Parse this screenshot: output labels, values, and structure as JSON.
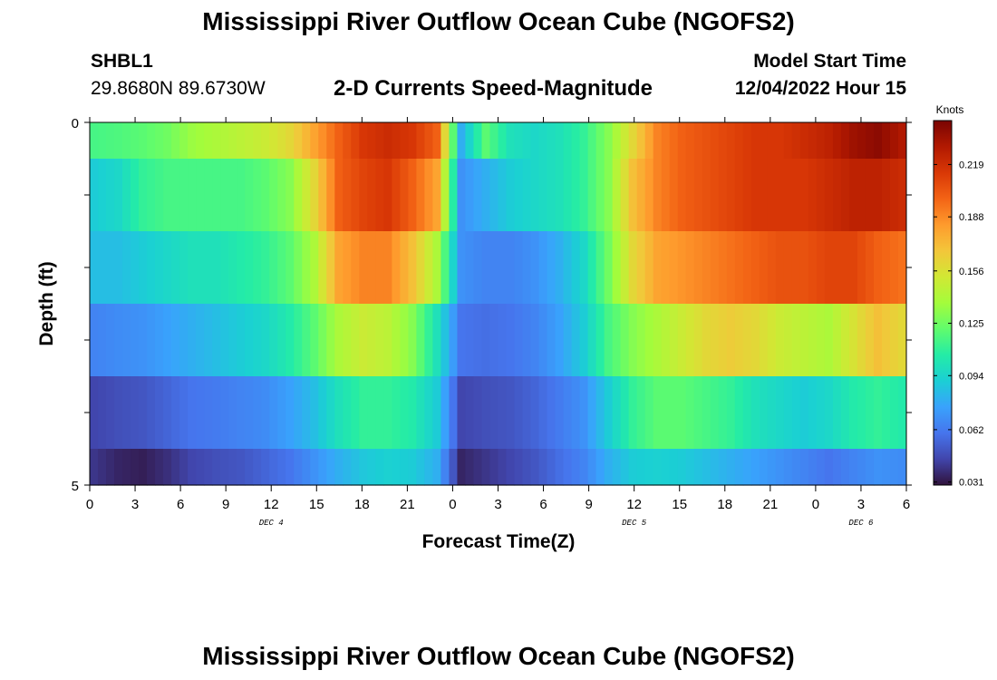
{
  "header": {
    "title": "Mississippi River Outflow Ocean Cube (NGOFS2)",
    "station_id": "SHBL1",
    "coordinates": "29.8680N  89.6730W",
    "start_label": "Model Start Time",
    "start_value": "12/04/2022 Hour 15"
  },
  "footer": {
    "title": "Mississippi River Outflow Ocean Cube (NGOFS2)"
  },
  "chart_data": {
    "type": "heatmap",
    "title": "2-D Currents Speed-Magnitude",
    "xlabel": "Forecast Time(Z)",
    "ylabel": "Depth (ft)",
    "x_tick_labels": [
      "0",
      "3",
      "6",
      "9",
      "12",
      "15",
      "18",
      "21",
      "0",
      "3",
      "6",
      "9",
      "12",
      "15",
      "18",
      "21",
      "0",
      "3",
      "6"
    ],
    "date_labels": [
      {
        "label": "DEC 4",
        "tick_index": 4
      },
      {
        "label": "DEC 5",
        "tick_index": 12
      },
      {
        "label": "DEC 6",
        "tick_index": 17
      }
    ],
    "y_tick_labels": [
      "0",
      "5"
    ],
    "ylim": [
      0,
      5
    ],
    "colorbar": {
      "unit": "Knots",
      "min": 0.0292,
      "max": 0.245,
      "ticks": [
        "0.219",
        "0.188",
        "0.156",
        "0.125",
        "0.094",
        "0.062",
        "0.031"
      ],
      "colors": [
        "#30123b",
        "#4145ab",
        "#4675ed",
        "#39a2fc",
        "#1bcfd4",
        "#24eca6",
        "#61fc6c",
        "#a4fc3b",
        "#d1e834",
        "#f3c63a",
        "#fe9b2d",
        "#f36315",
        "#d93806",
        "#b11901",
        "#7a0402"
      ]
    },
    "layers": [
      [
        0.115,
        0.117,
        0.12,
        0.125,
        0.135,
        0.14,
        0.145,
        0.15,
        0.16,
        0.18,
        0.2,
        0.215,
        0.22,
        0.215,
        0.2,
        0.08,
        0.12,
        0.1,
        0.095,
        0.1,
        0.11,
        0.13,
        0.16,
        0.19,
        0.2,
        0.205,
        0.21,
        0.215,
        0.215,
        0.22,
        0.225,
        0.235,
        0.24,
        0.23
      ],
      [
        0.09,
        0.095,
        0.11,
        0.115,
        0.115,
        0.115,
        0.115,
        0.12,
        0.13,
        0.16,
        0.2,
        0.21,
        0.215,
        0.2,
        0.18,
        0.07,
        0.08,
        0.09,
        0.095,
        0.1,
        0.11,
        0.13,
        0.17,
        0.19,
        0.2,
        0.205,
        0.21,
        0.215,
        0.215,
        0.215,
        0.22,
        0.225,
        0.225,
        0.22
      ],
      [
        0.085,
        0.085,
        0.09,
        0.095,
        0.1,
        0.1,
        0.105,
        0.11,
        0.12,
        0.14,
        0.18,
        0.19,
        0.19,
        0.17,
        0.14,
        0.07,
        0.065,
        0.065,
        0.07,
        0.08,
        0.095,
        0.125,
        0.16,
        0.18,
        0.185,
        0.19,
        0.195,
        0.2,
        0.205,
        0.205,
        0.21,
        0.21,
        0.2,
        0.195
      ],
      [
        0.065,
        0.068,
        0.07,
        0.075,
        0.08,
        0.085,
        0.09,
        0.095,
        0.105,
        0.12,
        0.14,
        0.15,
        0.145,
        0.13,
        0.1,
        0.06,
        0.058,
        0.06,
        0.065,
        0.075,
        0.09,
        0.115,
        0.13,
        0.14,
        0.15,
        0.16,
        0.165,
        0.16,
        0.15,
        0.145,
        0.14,
        0.155,
        0.17,
        0.16
      ],
      [
        0.045,
        0.048,
        0.05,
        0.055,
        0.06,
        0.062,
        0.065,
        0.068,
        0.075,
        0.085,
        0.1,
        0.11,
        0.11,
        0.105,
        0.09,
        0.045,
        0.048,
        0.05,
        0.055,
        0.062,
        0.07,
        0.09,
        0.11,
        0.12,
        0.12,
        0.115,
        0.11,
        0.1,
        0.095,
        0.09,
        0.095,
        0.105,
        0.11,
        0.105
      ],
      [
        0.04,
        0.035,
        0.033,
        0.038,
        0.045,
        0.048,
        0.05,
        0.055,
        0.06,
        0.07,
        0.08,
        0.088,
        0.092,
        0.09,
        0.08,
        0.035,
        0.04,
        0.045,
        0.05,
        0.058,
        0.065,
        0.08,
        0.09,
        0.092,
        0.09,
        0.085,
        0.08,
        0.075,
        0.07,
        0.065,
        0.06,
        0.065,
        0.07,
        0.068
      ]
    ]
  }
}
